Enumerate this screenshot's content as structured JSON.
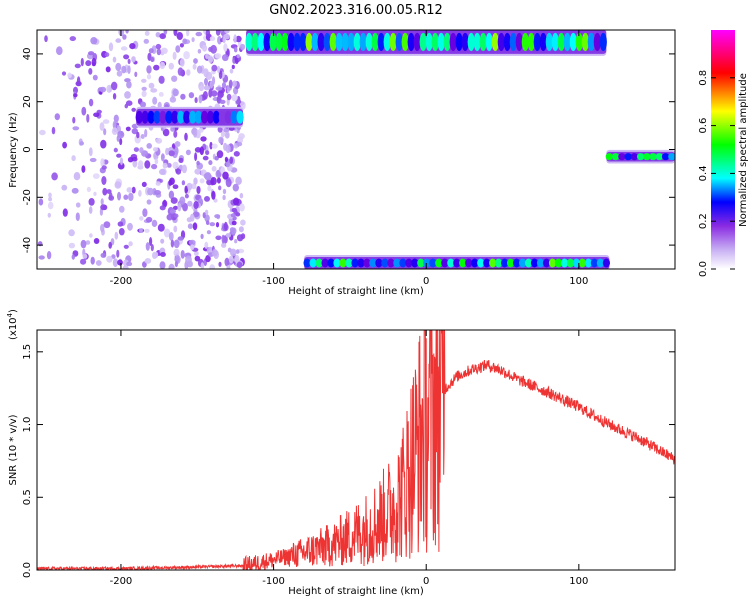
{
  "title": "GN02.2023.316.00.05.R12",
  "chart_data": [
    {
      "type": "heatmap",
      "xlabel": "Height of straight line (km)",
      "ylabel": "Frequency (Hz)",
      "xlim": [
        -255,
        163
      ],
      "ylim": [
        -50,
        50
      ],
      "xticks": [
        -200,
        -100,
        0,
        100
      ],
      "yticks": [
        -40,
        -20,
        0,
        20,
        40
      ],
      "colorbar": {
        "label": "Normalized spectral amplitude",
        "range": [
          0.0,
          1.0
        ],
        "ticks": [
          "0.0",
          "0.2",
          "0.4",
          "0.6",
          "0.8"
        ],
        "colormap": [
          "#ffffff",
          "#b090f0",
          "#6a00e0",
          "#0000ff",
          "#00ffff",
          "#00ff00",
          "#ffff00",
          "#ff0000",
          "#ff00ff"
        ]
      },
      "features": [
        {
          "name": "scattered-noise",
          "x": [
            -255,
            -120
          ],
          "y": [
            -50,
            50
          ],
          "amplitude": 0.15
        },
        {
          "name": "band-near-12hz",
          "x": [
            -190,
            -120
          ],
          "y": [
            10,
            17
          ],
          "amplitude": 0.35
        },
        {
          "name": "band-near-45hz",
          "x": [
            -118,
            118
          ],
          "y": [
            40,
            50
          ],
          "amplitude": 0.5
        },
        {
          "name": "band-near-minus48hz",
          "x": [
            -80,
            120
          ],
          "y": [
            -50,
            -45
          ],
          "amplitude": 0.5
        },
        {
          "name": "band-near-minus3hz",
          "x": [
            118,
            163
          ],
          "y": [
            -5,
            -1
          ],
          "amplitude": 0.45
        }
      ]
    },
    {
      "type": "line",
      "xlabel": "Height of straight line (km)",
      "ylabel": "SNR (10 * v/v)",
      "yscale_label": "(x10",
      "yscale_exp": "4",
      "yscale_close": ")",
      "xlim": [
        -255,
        163
      ],
      "ylim": [
        0,
        1.65
      ],
      "xticks": [
        -200,
        -100,
        0,
        100
      ],
      "yticks": [
        0.0,
        0.5,
        1.0,
        1.5
      ],
      "color": "#ee3333",
      "series": [
        {
          "x": [
            -255,
            -200,
            -150,
            -120,
            -100,
            -80,
            -60,
            -40,
            -30,
            -20,
            -15,
            -10,
            -5,
            0,
            5,
            10,
            20,
            30,
            40,
            50,
            60,
            80,
            100,
            120,
            140,
            163
          ],
          "y": [
            0.01,
            0.01,
            0.02,
            0.03,
            0.07,
            0.12,
            0.18,
            0.28,
            0.35,
            0.45,
            0.55,
            0.72,
            0.88,
            1.0,
            1.1,
            1.22,
            1.33,
            1.38,
            1.41,
            1.37,
            1.31,
            1.22,
            1.12,
            1.0,
            0.9,
            0.76
          ]
        }
      ]
    }
  ]
}
